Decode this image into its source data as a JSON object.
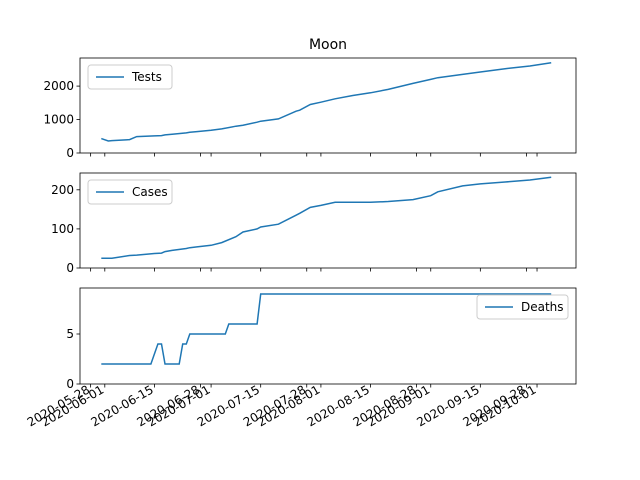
{
  "chart_data": [
    {
      "type": "line",
      "title": "Moon",
      "x": [
        "2020-05-31",
        "2020-06-02",
        "2020-06-03",
        "2020-06-08",
        "2020-06-10",
        "2020-06-15",
        "2020-06-17",
        "2020-06-18",
        "2020-06-20",
        "2020-06-24",
        "2020-06-25",
        "2020-06-27",
        "2020-07-01",
        "2020-07-04",
        "2020-07-08",
        "2020-07-10",
        "2020-07-14",
        "2020-07-15",
        "2020-07-20",
        "2020-07-25",
        "2020-07-26",
        "2020-07-29",
        "2020-08-01",
        "2020-08-05",
        "2020-08-10",
        "2020-08-15",
        "2020-08-20",
        "2020-08-27",
        "2020-09-01",
        "2020-09-03",
        "2020-09-10",
        "2020-09-15",
        "2020-09-22",
        "2020-09-29",
        "2020-10-05"
      ],
      "series": [
        {
          "name": "Tests",
          "color": "#1f77b4",
          "values": [
            430,
            360,
            370,
            400,
            490,
            510,
            520,
            540,
            560,
            600,
            620,
            640,
            680,
            720,
            800,
            830,
            920,
            950,
            1020,
            1250,
            1280,
            1450,
            1520,
            1620,
            1720,
            1800,
            1900,
            2080,
            2200,
            2250,
            2350,
            2420,
            2520,
            2600,
            2700
          ]
        }
      ],
      "xlim": [
        "2020-05-25",
        "2020-10-12"
      ],
      "ylim": [
        0,
        2840
      ],
      "yticks": [
        0,
        1000,
        2000
      ],
      "legend": "upper left"
    },
    {
      "type": "line",
      "x": [
        "2020-05-31",
        "2020-06-02",
        "2020-06-03",
        "2020-06-08",
        "2020-06-10",
        "2020-06-15",
        "2020-06-17",
        "2020-06-18",
        "2020-06-20",
        "2020-06-24",
        "2020-06-25",
        "2020-06-27",
        "2020-07-01",
        "2020-07-04",
        "2020-07-08",
        "2020-07-10",
        "2020-07-14",
        "2020-07-15",
        "2020-07-20",
        "2020-07-25",
        "2020-07-26",
        "2020-07-29",
        "2020-08-01",
        "2020-08-05",
        "2020-08-10",
        "2020-08-15",
        "2020-08-20",
        "2020-08-27",
        "2020-09-01",
        "2020-09-03",
        "2020-09-10",
        "2020-09-15",
        "2020-09-22",
        "2020-09-29",
        "2020-10-05"
      ],
      "series": [
        {
          "name": "Cases",
          "color": "#1f77b4",
          "values": [
            25,
            25,
            25,
            32,
            33,
            37,
            38,
            42,
            45,
            50,
            52,
            54,
            58,
            65,
            80,
            92,
            100,
            105,
            112,
            135,
            140,
            155,
            160,
            168,
            168,
            168,
            170,
            175,
            185,
            195,
            210,
            215,
            220,
            225,
            232
          ]
        }
      ],
      "xlim": [
        "2020-05-25",
        "2020-10-12"
      ],
      "ylim": [
        0,
        243
      ],
      "yticks": [
        0,
        100,
        200
      ],
      "legend": "upper left"
    },
    {
      "type": "line",
      "x": [
        "2020-05-31",
        "2020-06-14",
        "2020-06-16",
        "2020-06-17",
        "2020-06-18",
        "2020-06-22",
        "2020-06-23",
        "2020-06-24",
        "2020-06-25",
        "2020-07-05",
        "2020-07-06",
        "2020-07-14",
        "2020-07-15",
        "2020-10-05"
      ],
      "series": [
        {
          "name": "Deaths",
          "color": "#1f77b4",
          "values": [
            2,
            2,
            4,
            4,
            2,
            2,
            4,
            4,
            5,
            5,
            6,
            6,
            9,
            9
          ]
        }
      ],
      "xlim": [
        "2020-05-25",
        "2020-10-12"
      ],
      "ylim": [
        0,
        9.6
      ],
      "yticks": [
        0,
        5
      ],
      "legend": "upper right",
      "xticks": [
        "2020-05-28",
        "2020-06-01",
        "2020-06-15",
        "2020-06-28",
        "2020-07-01",
        "2020-07-15",
        "2020-07-28",
        "2020-08-01",
        "2020-08-15",
        "2020-08-28",
        "2020-09-01",
        "2020-09-15",
        "2020-09-28",
        "2020-10-01"
      ]
    }
  ]
}
